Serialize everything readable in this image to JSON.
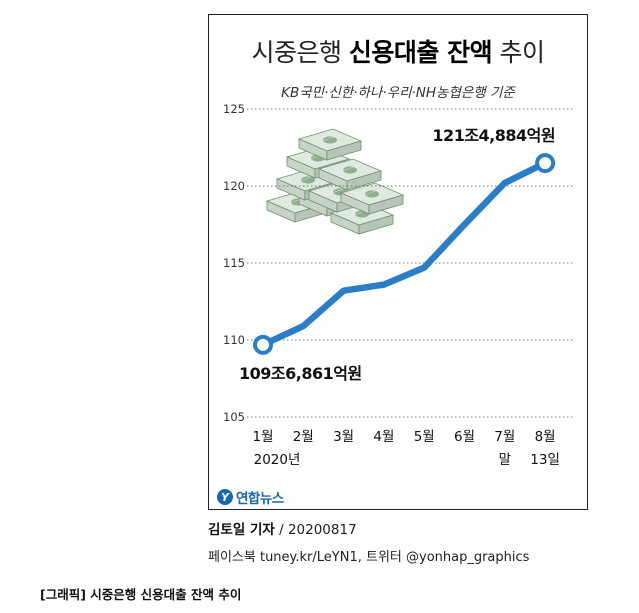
{
  "chart_data": {
    "type": "line",
    "title_light": "시중은행 ",
    "title_bold": "신용대출 잔액",
    "title_light2": " 추이",
    "subtitle": "KB국민·신한·하나·우리·NH농협은행 기준",
    "categories_top": [
      "1월",
      "2월",
      "3월",
      "4월",
      "5월",
      "6월",
      "7월",
      "8월"
    ],
    "categories_bottom": [
      "2020년",
      "",
      "",
      "",
      "",
      "",
      "말",
      "13일"
    ],
    "values": [
      109.6861,
      110.9,
      113.2,
      113.6,
      114.7,
      117.5,
      120.2,
      121.4884
    ],
    "ylim": [
      105,
      125
    ],
    "yticks": [
      "105",
      "110",
      "115",
      "120",
      "125"
    ],
    "grid": "dotted-horizontal",
    "color": "#2a7ec8",
    "start_label": "109조6,861억원",
    "end_label": "121조4,884억원"
  },
  "illustration": "stacks-of-banknotes",
  "logo": {
    "mark": "Y",
    "name": "연합뉴스"
  },
  "byline": {
    "reporter": "김토일 기자",
    "date": " / 20200817"
  },
  "social": "페이스북 tuney.kr/LeYN1, 트위터 @yonhap_graphics",
  "caption": "[그래픽] 시중은행 신용대출 잔액 추이"
}
